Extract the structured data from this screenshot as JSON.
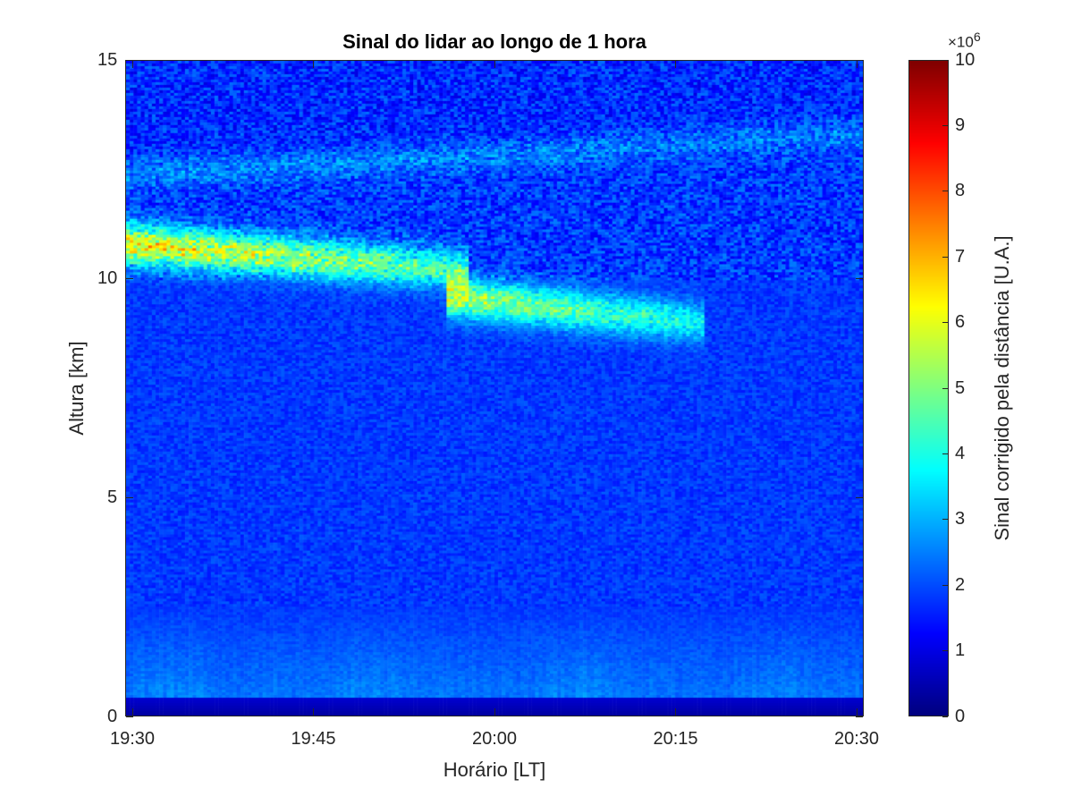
{
  "chart_data": {
    "type": "heatmap",
    "title": "Sinal do lidar ao longo de 1 hora",
    "xlabel": "Horário [LT]",
    "ylabel": "Altura [km]",
    "x_ticks": [
      "19:30",
      "19:45",
      "20:00",
      "20:15",
      "20:30"
    ],
    "y_ticks": [
      0,
      5,
      10,
      15
    ],
    "ylim": [
      0,
      15
    ],
    "colormap": "jet",
    "colorbar": {
      "label": "Sinal corrigido pela distância [U.A.]",
      "exponent_label": "×10",
      "exponent_power": "6",
      "ticks": [
        0,
        1,
        2,
        3,
        4,
        5,
        6,
        7,
        8,
        9,
        10
      ],
      "range": [
        0,
        10
      ]
    },
    "features": [
      {
        "layer": "ground",
        "altitude_km": [
          0,
          0.4
        ],
        "signal_x1e6": 0.3
      },
      {
        "layer": "boundary",
        "altitude_km": [
          0.4,
          2.5
        ],
        "signal_x1e6": 2.6
      },
      {
        "layer": "cirrus_upper",
        "time_start": "19:30",
        "time_end": "19:58",
        "altitude_km_start": 10.8,
        "altitude_km_end": 10.2,
        "peak_signal_x1e6": 7.0
      },
      {
        "layer": "cirrus_lower",
        "time_start": "19:56",
        "time_end": "20:17",
        "altitude_km_start": 9.6,
        "altitude_km_end": 9.0,
        "peak_signal_x1e6": 6.0
      },
      {
        "layer": "thin_upper",
        "time_start": "19:30",
        "time_end": "20:30",
        "altitude_km_start": 12.4,
        "altitude_km_end": 13.3,
        "peak_signal_x1e6": 3.3
      }
    ],
    "background_signal_x1e6": 1.8
  }
}
